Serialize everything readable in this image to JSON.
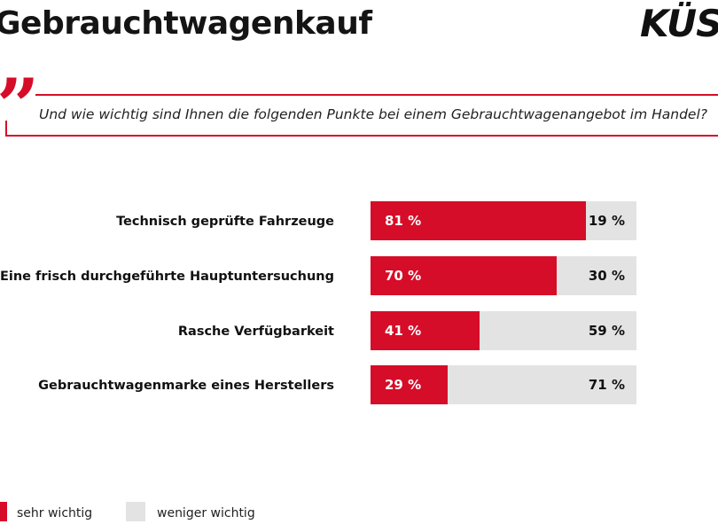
{
  "header": {
    "title": "Gebrauchtwagenkauf",
    "logo_text": "KÜS"
  },
  "question": "Und wie wichtig sind Ihnen die folgenden Punkte bei einem Gebrauchtwagenangebot im Handel?",
  "colors": {
    "accent": "#d60d28",
    "grey": "#e3e3e3"
  },
  "chart_data": {
    "type": "bar",
    "orientation": "horizontal",
    "stacked": true,
    "categories": [
      "Technisch geprüfte Fahrzeuge",
      "Eine frisch durchgeführte Hauptuntersuchung",
      "Rasche Verfügbarkeit",
      "Gebrauchtwagenmarke eines Herstellers"
    ],
    "series": [
      {
        "name": "sehr wichtig",
        "values": [
          81,
          70,
          41,
          29
        ],
        "color": "#d60d28"
      },
      {
        "name": "weniger wichtig",
        "values": [
          19,
          30,
          59,
          71
        ],
        "color": "#e3e3e3"
      }
    ],
    "value_labels": {
      "sehr wichtig": [
        "81 %",
        "70 %",
        "41 %",
        "29 %"
      ],
      "weniger wichtig": [
        "19 %",
        "30 %",
        "59 %",
        "71 %"
      ]
    },
    "xlim": [
      0,
      100
    ],
    "legend": [
      "sehr wichtig",
      "weniger wichtig"
    ],
    "legend_position": "bottom-left"
  }
}
